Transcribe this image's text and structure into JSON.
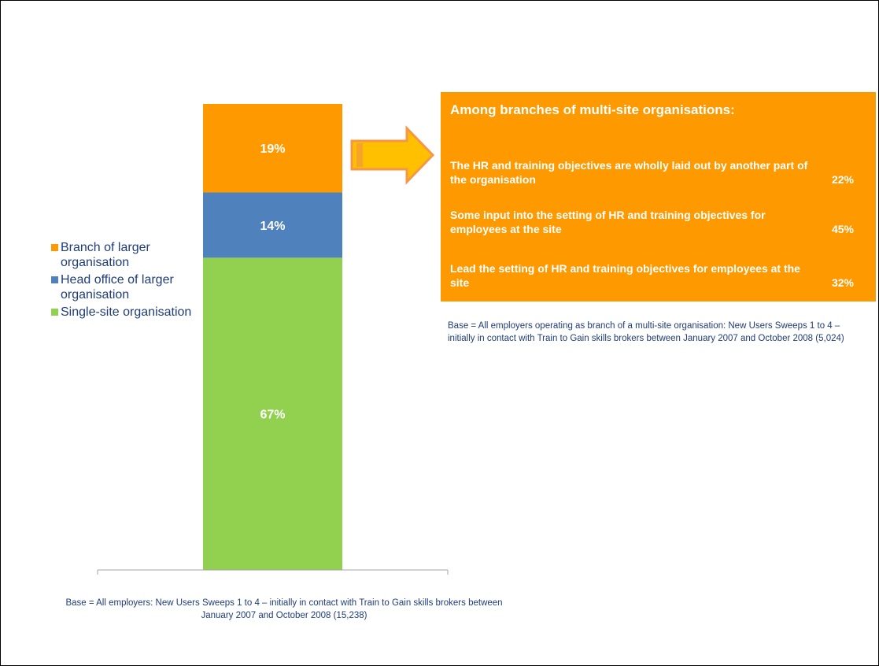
{
  "chart_data": {
    "type": "bar",
    "stacked": true,
    "categories": [
      ""
    ],
    "series": [
      {
        "name": "Single-site organisation",
        "values": [
          67
        ],
        "label": "67%",
        "color": "#92d050"
      },
      {
        "name": "Head office of larger organisation",
        "values": [
          14
        ],
        "label": "14%",
        "color": "#4f81bd"
      },
      {
        "name": "Branch of larger organisation",
        "values": [
          19
        ],
        "label": "19%",
        "color": "#ff9900"
      }
    ],
    "ylim": [
      0,
      100
    ],
    "grid": false,
    "legend_position": "left"
  },
  "legend": {
    "items": [
      {
        "label": "Branch of larger organisation",
        "color": "#ff9900"
      },
      {
        "label": "Head office of larger organisation",
        "color": "#4f81bd"
      },
      {
        "label": "Single-site organisation",
        "color": "#92d050"
      }
    ]
  },
  "base_left": "Base = All employers: New Users Sweeps 1 to 4 – initially in contact with  Train to Gain skills brokers between January 2007 and October 2008 (15,238)",
  "callout": {
    "title": "Among branches of multi-site organisations:",
    "items": [
      {
        "text": "The HR and training objectives are wholly laid out by another part of the organisation",
        "value": "22%"
      },
      {
        "text": "Some input into the setting of HR and training objectives for employees at the site",
        "value": "45%"
      },
      {
        "text": "Lead the setting of HR and training objectives for employees at the site",
        "value": "32%"
      }
    ]
  },
  "base_right": "Base  = All employers operating as branch of a multi-site organisation: New Users Sweeps 1 to 4 – initially in contact with Train to Gain skills brokers between January 2007 and October 2008 (5,024)",
  "colors": {
    "orange": "#ff9900",
    "blue": "#4f81bd",
    "green": "#92d050",
    "text": "#1f3d7a"
  }
}
